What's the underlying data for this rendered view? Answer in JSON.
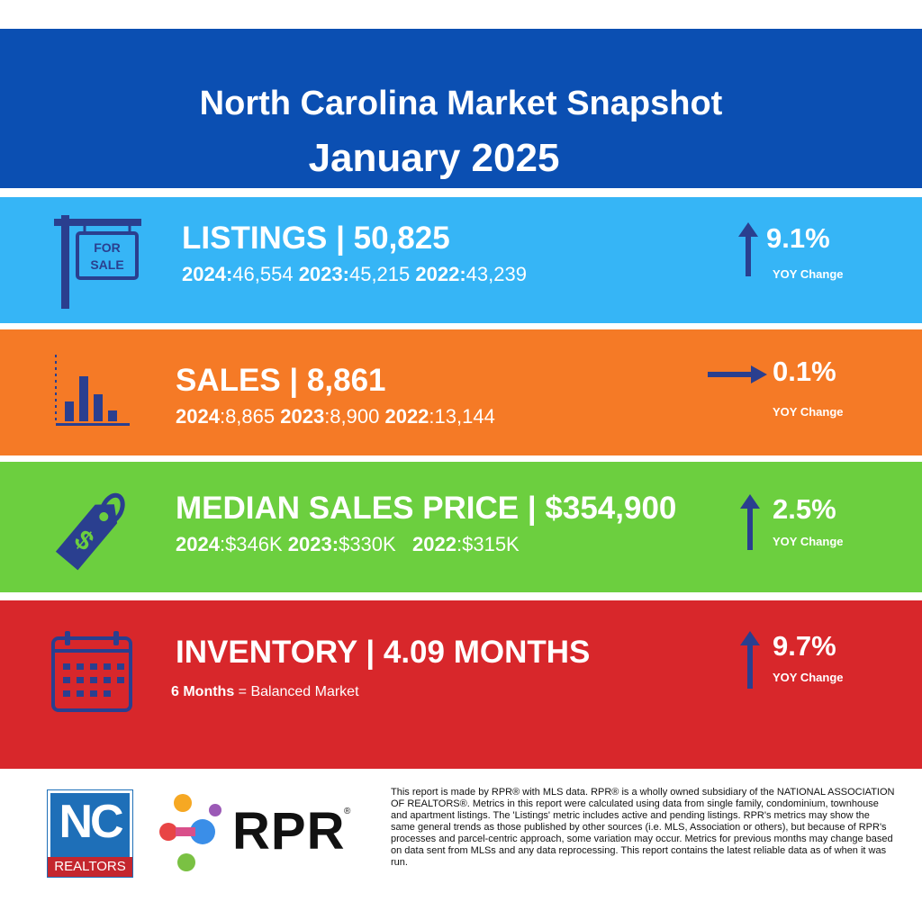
{
  "header": {
    "title": "North Carolina Market Snapshot",
    "subtitle": "January 2025",
    "color": "#0b4fb2"
  },
  "listings": {
    "color": "#36b5f6",
    "title": "LISTINGS | 50,825",
    "history": [
      {
        "year": "2024:",
        "value": "46,554"
      },
      {
        "year": "2023:",
        "value": "45,215"
      },
      {
        "year": "2022:",
        "value": "43,239"
      }
    ],
    "change": "9.1%",
    "change_label": "YOY Change",
    "arrow": "up",
    "icon": "for-sale-sign-icon",
    "sign_text": [
      "FOR",
      "SALE"
    ]
  },
  "sales": {
    "color": "#f57a26",
    "title": "SALES | 8,861",
    "history": [
      {
        "year": "2024",
        "value": ":8,865"
      },
      {
        "year": "2023",
        "value": ":8,900"
      },
      {
        "year": "2022",
        "value": ":13,144"
      }
    ],
    "change": "0.1%",
    "change_label": "YOY Change",
    "arrow": "right",
    "icon": "bar-chart-icon"
  },
  "median": {
    "color": "#6ccf3f",
    "title": "MEDIAN SALES PRICE | $354,900",
    "history": [
      {
        "year": "2024",
        "value": ":$346K"
      },
      {
        "year": "2023:",
        "value": "$330K"
      },
      {
        "year": "2022",
        "value": ":$315K"
      }
    ],
    "change": "2.5%",
    "change_label": "YOY Change",
    "arrow": "up",
    "icon": "price-tag-icon"
  },
  "inventory": {
    "color": "#d8272b",
    "title": "INVENTORY | 4.09 MONTHS",
    "note_bold": "6 Months",
    "note_rest": " = Balanced Market",
    "change": "9.7%",
    "change_label": "YOY Change",
    "arrow": "up",
    "icon": "calendar-icon"
  },
  "footer": {
    "nc_logo_text": "NC",
    "nc_logo_sub": "REALTORS",
    "rpr_logo_text": "RPR",
    "rpr_reg": "®",
    "disclaimer": "This report is made by RPR® with MLS data. RPR® is a wholly owned subsidiary of the NATIONAL ASSOCIATION OF REALTORS®. Metrics in this report were calculated using data from single family, condominium, townhouse and apartment listings. The 'Listings' metric includes active and pending listings. RPR's metrics may show the same general trends as those published by other sources (i.e. MLS, Association or others), but because of RPR's processes and parcel-centric approach, some variation may occur. Metrics for previous months may change based on data sent from MLSs and any data reprocessing. This report contains the latest reliable data as of when it was run."
  },
  "accent_icon_color": "#2a3f8f"
}
